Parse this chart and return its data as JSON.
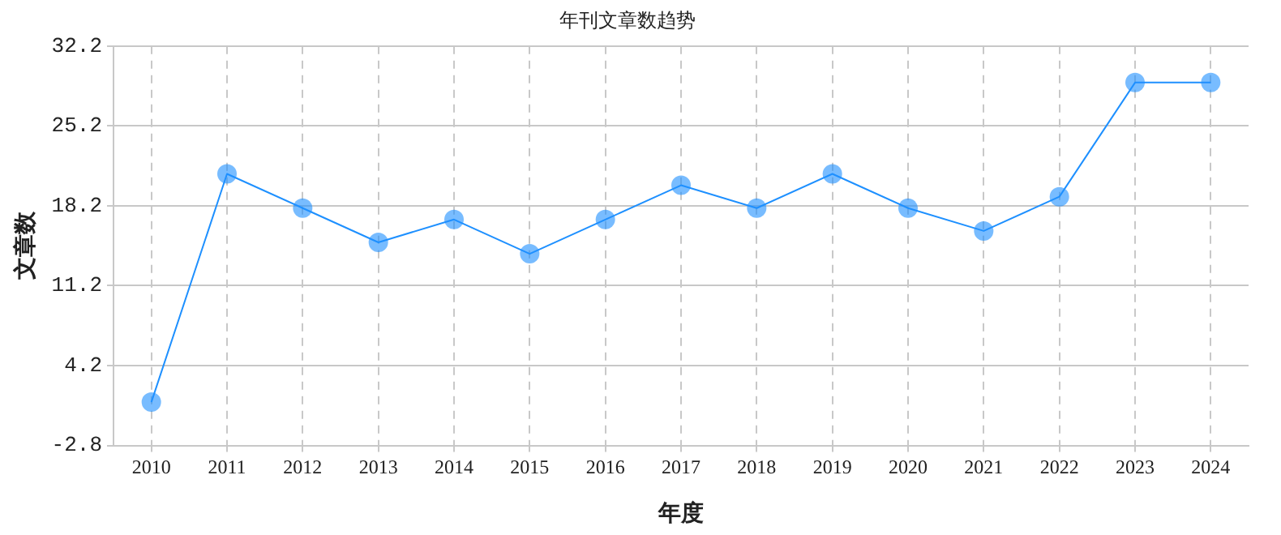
{
  "chart_data": {
    "type": "line",
    "title": "年刊文章数趋势",
    "xlabel": "年度",
    "ylabel": "文章数",
    "categories": [
      "2010",
      "2011",
      "2012",
      "2013",
      "2014",
      "2015",
      "2016",
      "2017",
      "2018",
      "2019",
      "2020",
      "2021",
      "2022",
      "2023",
      "2024"
    ],
    "series": [
      {
        "color": "#1e90ff",
        "values": [
          1,
          21,
          18,
          15,
          17,
          14,
          17,
          20,
          18,
          21,
          18,
          16,
          19,
          29,
          29
        ]
      }
    ],
    "ylim": [
      -2.8,
      32.2
    ],
    "yticks": [
      -2.8,
      4.2,
      11.2,
      18.2,
      25.2,
      32.2
    ],
    "grid": true,
    "legend": false,
    "marker": "circle",
    "line_style": "solid"
  }
}
